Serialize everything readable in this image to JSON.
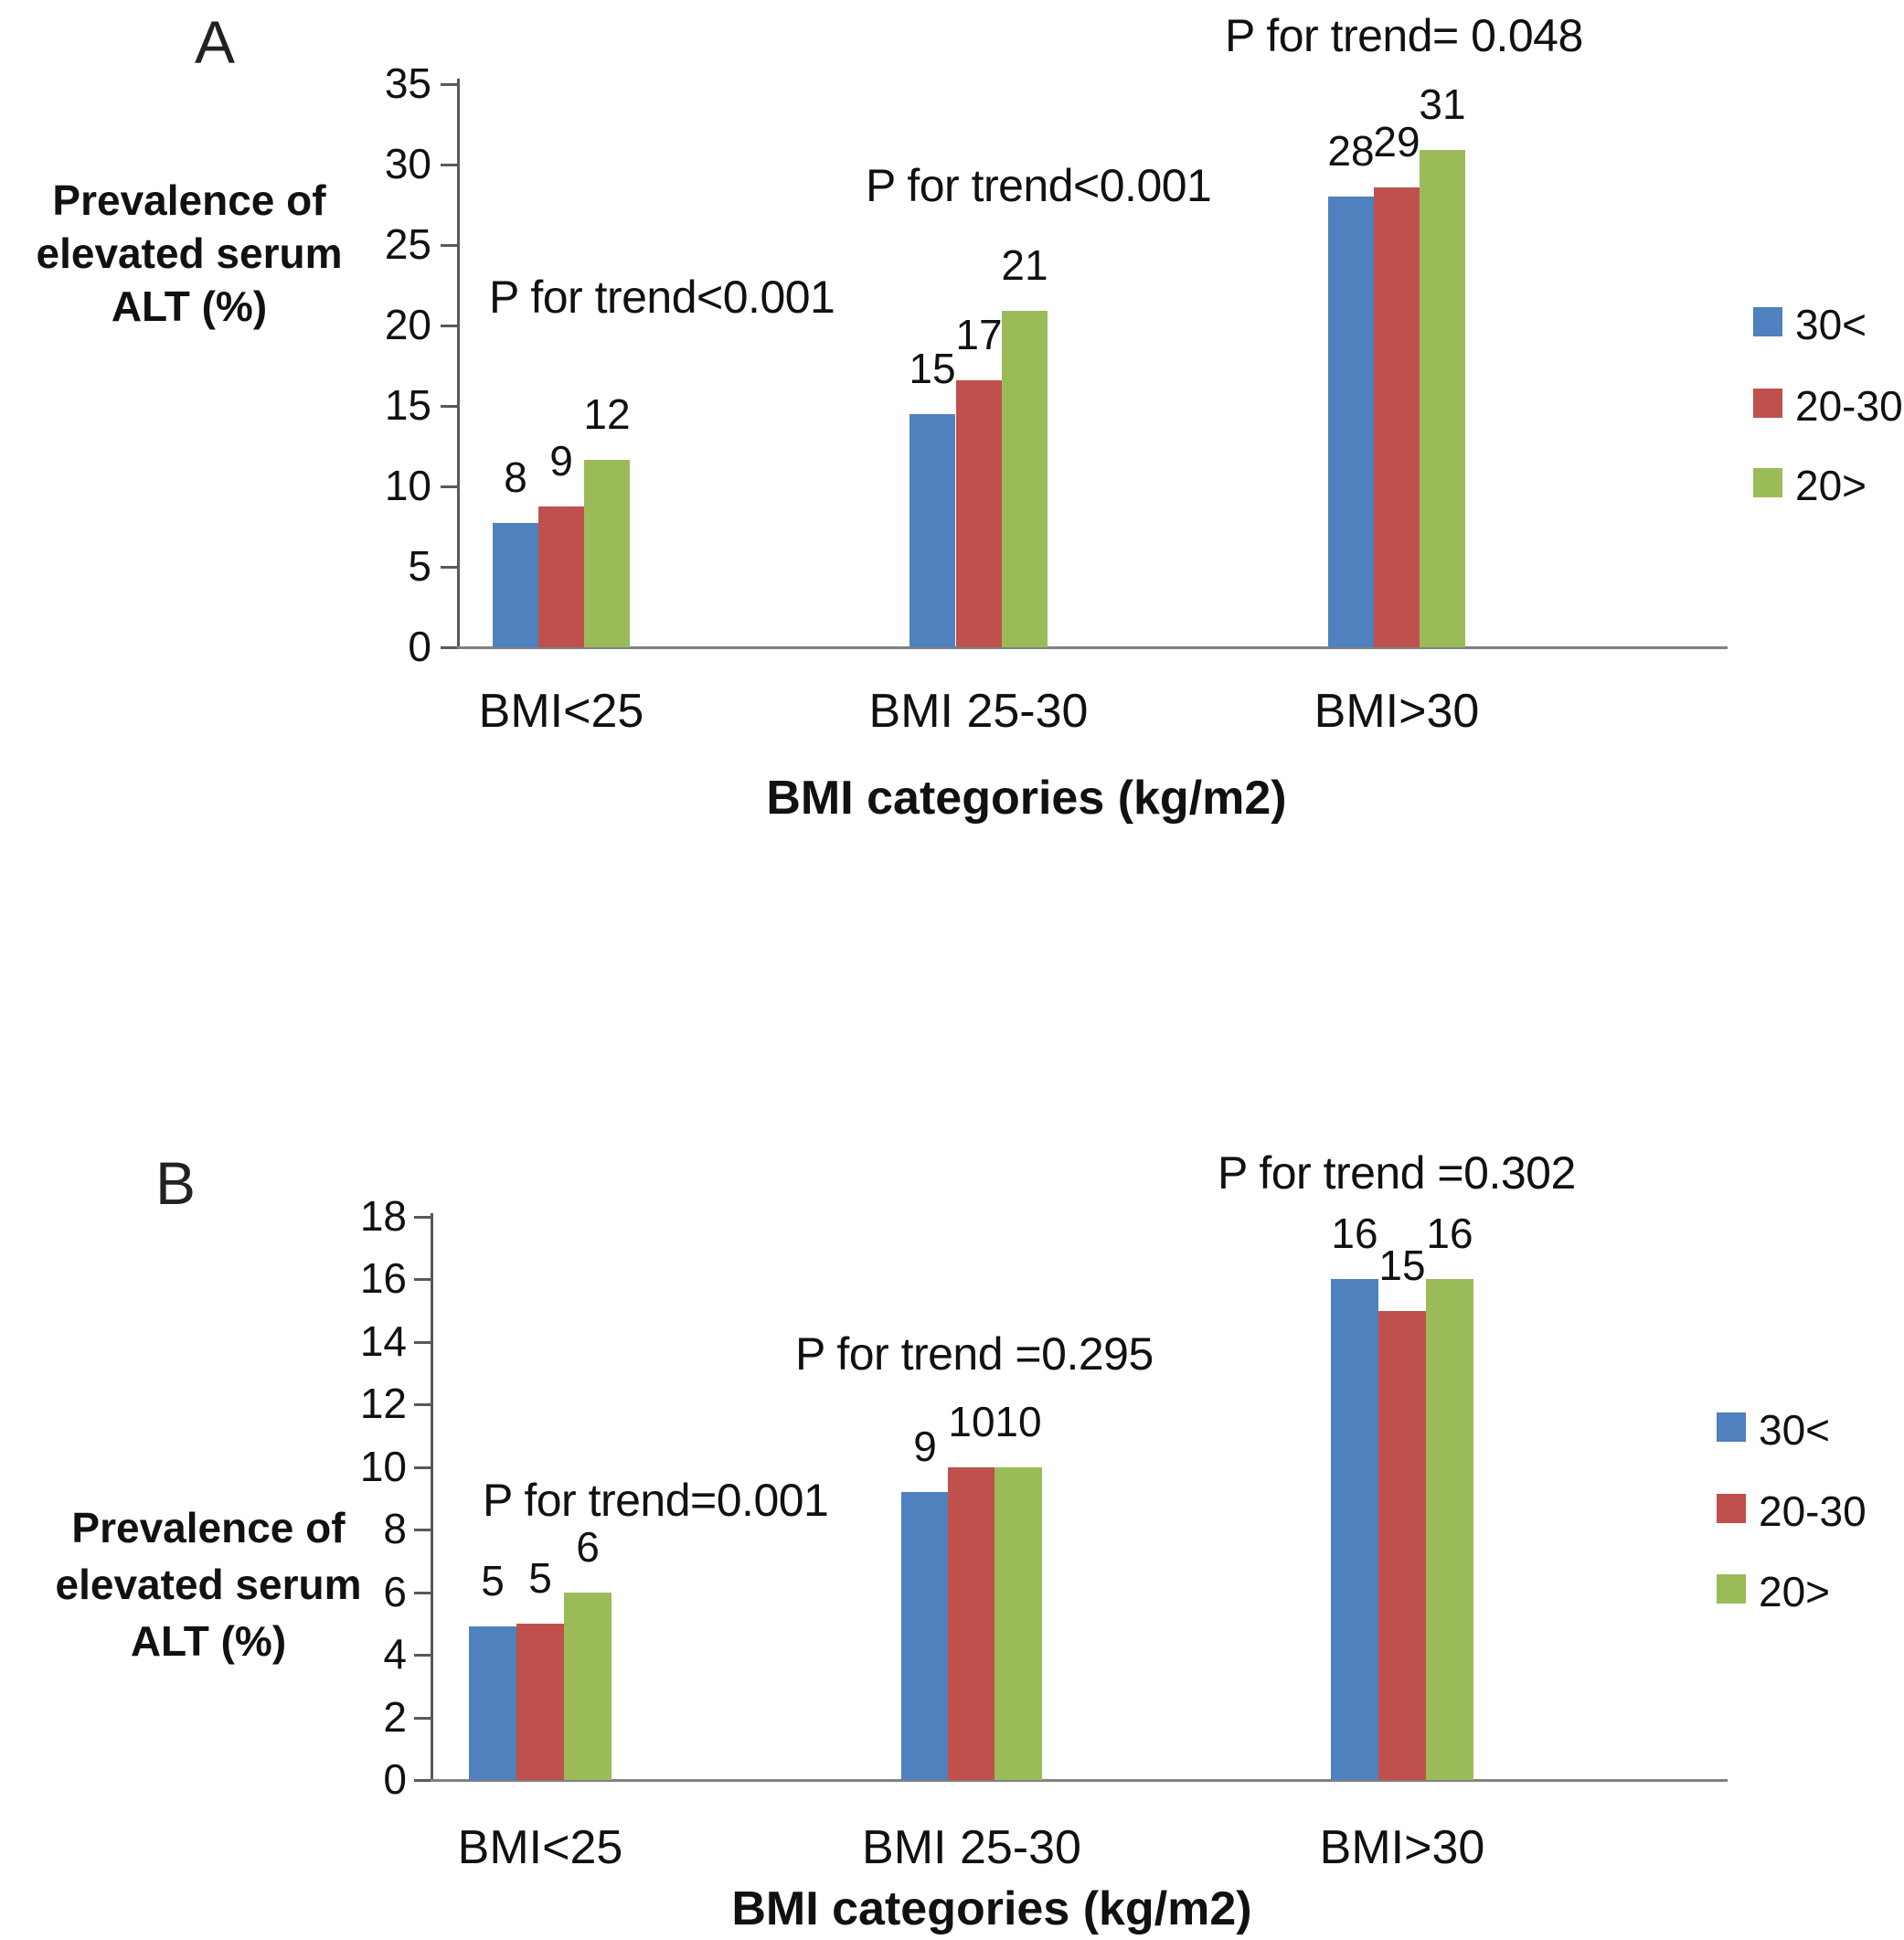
{
  "chart_data": [
    {
      "panel_letter": "A",
      "type": "bar",
      "ylabel_lines": [
        "Prevalence of",
        "elevated serum",
        "ALT (%)"
      ],
      "xlabel": "BMI categories (kg/m2)",
      "categories": [
        "BMI<25",
        "BMI 25-30",
        "BMI>30"
      ],
      "series": [
        {
          "name": "30<",
          "color": "#4E81BD",
          "values": [
            7.7,
            14.5,
            28.0
          ],
          "point_labels": [
            "8",
            "15",
            "28"
          ]
        },
        {
          "name": "20-30",
          "color": "#C0504D",
          "values": [
            8.75,
            16.6,
            28.6
          ],
          "point_labels": [
            "9",
            "17",
            "29"
          ]
        },
        {
          "name": "20>",
          "color": "#9BBB59",
          "values": [
            11.65,
            20.9,
            30.9
          ],
          "point_labels": [
            "12",
            "21",
            "31"
          ]
        }
      ],
      "annotations": [
        {
          "text": "P for trend<0.001",
          "category": "BMI<25"
        },
        {
          "text": "P for trend<0.001",
          "category": "BMI 25-30"
        },
        {
          "text": "P for trend= 0.048",
          "category": "BMI>30"
        }
      ],
      "ylim": [
        0,
        35
      ],
      "yticks": [
        "0",
        "5",
        "10",
        "15",
        "20",
        "25",
        "30",
        "35"
      ],
      "legend_position": "right",
      "grid": false
    },
    {
      "panel_letter": "B",
      "type": "bar",
      "ylabel_lines": [
        "Prevalence of",
        "elevated serum",
        "ALT (%)"
      ],
      "xlabel": "BMI categories (kg/m2)",
      "categories": [
        "BMI<25",
        "BMI 25-30",
        "BMI>30"
      ],
      "series": [
        {
          "name": "30<",
          "color": "#4E81BD",
          "values": [
            4.9,
            9.2,
            16.0
          ],
          "point_labels": [
            "5",
            "9",
            "16"
          ]
        },
        {
          "name": "20-30",
          "color": "#C0504D",
          "values": [
            5.0,
            10.0,
            15.0
          ],
          "point_labels": [
            "5",
            "10",
            "15"
          ]
        },
        {
          "name": "20>",
          "color": "#9BBB59",
          "values": [
            6.0,
            10.0,
            16.0
          ],
          "point_labels": [
            "6",
            "10",
            "16"
          ]
        }
      ],
      "annotations": [
        {
          "text": "P for trend=0.001",
          "category": "BMI<25"
        },
        {
          "text": "P for trend =0.295",
          "category": "BMI 25-30"
        },
        {
          "text": "P for trend =0.302",
          "category": "BMI>30"
        }
      ],
      "ylim": [
        0,
        18
      ],
      "yticks": [
        "0",
        "2",
        "4",
        "6",
        "8",
        "10",
        "12",
        "14",
        "16",
        "18"
      ],
      "legend_position": "right",
      "grid": false
    }
  ]
}
